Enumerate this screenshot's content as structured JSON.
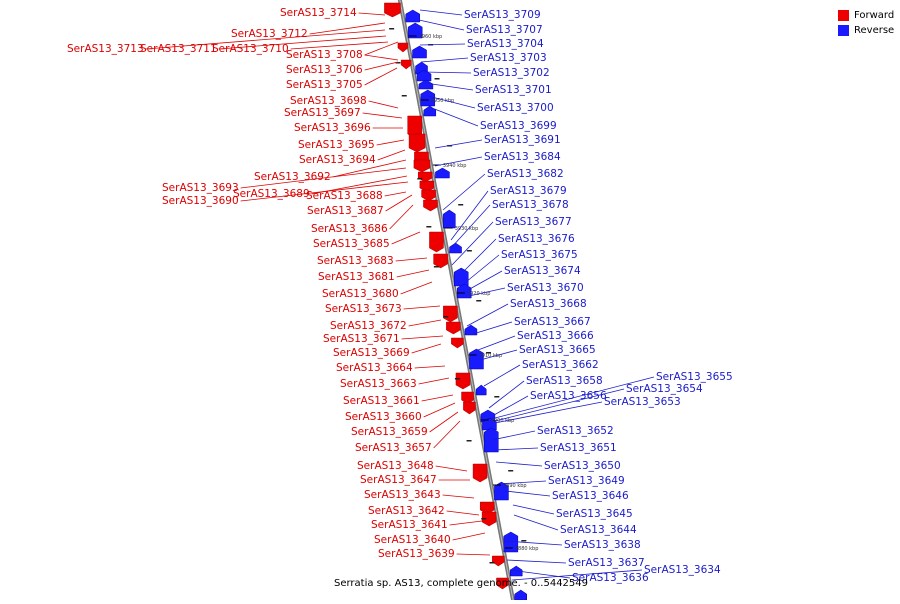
{
  "legend": {
    "forward_label": "Forward",
    "reverse_label": "Reverse"
  },
  "colors": {
    "forward": "#ee0000",
    "reverse": "#1a1aff",
    "backbone": "#777777"
  },
  "footer": {
    "text": "Serratia sp. AS13, complete genome. - 0..5442549"
  },
  "tick_labels": [
    "3960 kbp",
    "3950 kbp",
    "3940 kbp",
    "3930 kbp",
    "3920 kbp",
    "3910 kbp",
    "3900 kbp",
    "3890 kbp",
    "3880 kbp"
  ],
  "forward_genes": [
    "SerAS13_3714",
    "SerAS13_3712",
    "SerAS13_3713",
    "SerAS13_3711",
    "SerAS13_3710",
    "SerAS13_3708",
    "SerAS13_3706",
    "SerAS13_3705",
    "SerAS13_3698",
    "SerAS13_3697",
    "SerAS13_3696",
    "SerAS13_3695",
    "SerAS13_3694",
    "SerAS13_3692",
    "SerAS13_3693",
    "SerAS13_3689",
    "SerAS13_3690",
    "SerAS13_3688",
    "SerAS13_3687",
    "SerAS13_3686",
    "SerAS13_3685",
    "SerAS13_3683",
    "SerAS13_3681",
    "SerAS13_3680",
    "SerAS13_3673",
    "SerAS13_3672",
    "SerAS13_3671",
    "SerAS13_3669",
    "SerAS13_3664",
    "SerAS13_3663",
    "SerAS13_3661",
    "SerAS13_3660",
    "SerAS13_3659",
    "SerAS13_3657",
    "SerAS13_3648",
    "SerAS13_3647",
    "SerAS13_3643",
    "SerAS13_3642",
    "SerAS13_3641",
    "SerAS13_3640",
    "SerAS13_3639"
  ],
  "reverse_genes": [
    "SerAS13_3709",
    "SerAS13_3707",
    "SerAS13_3704",
    "SerAS13_3703",
    "SerAS13_3702",
    "SerAS13_3701",
    "SerAS13_3700",
    "SerAS13_3699",
    "SerAS13_3691",
    "SerAS13_3684",
    "SerAS13_3682",
    "SerAS13_3679",
    "SerAS13_3678",
    "SerAS13_3677",
    "SerAS13_3676",
    "SerAS13_3675",
    "SerAS13_3674",
    "SerAS13_3670",
    "SerAS13_3668",
    "SerAS13_3667",
    "SerAS13_3666",
    "SerAS13_3665",
    "SerAS13_3662",
    "SerAS13_3658",
    "SerAS13_3656",
    "SerAS13_3655",
    "SerAS13_3654",
    "SerAS13_3653",
    "SerAS13_3652",
    "SerAS13_3651",
    "SerAS13_3650",
    "SerAS13_3649",
    "SerAS13_3646",
    "SerAS13_3645",
    "SerAS13_3644",
    "SerAS13_3638",
    "SerAS13_3637",
    "SerAS13_3636",
    "SerAS13_3634"
  ]
}
